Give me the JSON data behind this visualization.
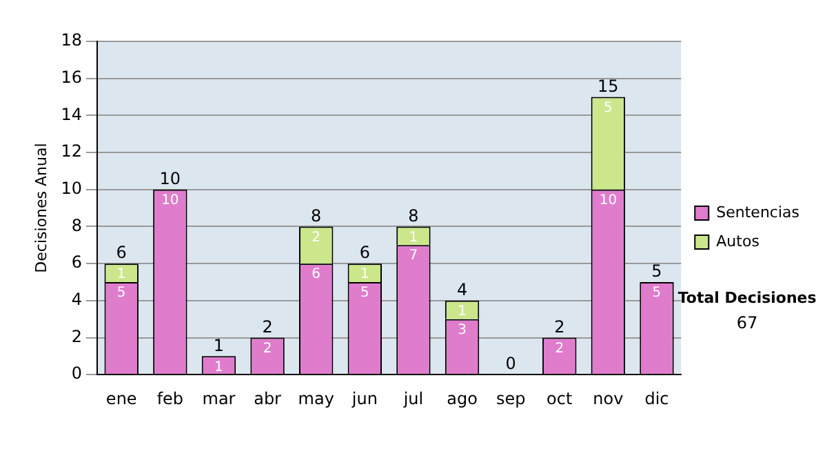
{
  "chart_data": {
    "type": "bar",
    "ylabel": "Decisiones Anual",
    "categories": [
      "ene",
      "feb",
      "mar",
      "abr",
      "may",
      "jun",
      "jul",
      "ago",
      "sep",
      "oct",
      "nov",
      "dic"
    ],
    "series": [
      {
        "name": "Sentencias",
        "color": "#e07ccc",
        "values": [
          5,
          10,
          1,
          2,
          6,
          5,
          7,
          3,
          0,
          2,
          10,
          5
        ],
        "value_labels": [
          "5",
          "10",
          "1",
          "2",
          "6",
          "5",
          "7",
          "3",
          null,
          "2",
          "10",
          "5"
        ]
      },
      {
        "name": "Autos",
        "color": "#cce68c",
        "values": [
          1,
          0,
          0,
          0,
          2,
          1,
          1,
          1,
          0,
          0,
          5,
          0
        ],
        "value_labels": [
          "1",
          null,
          null,
          null,
          "2",
          "1",
          "1",
          "1",
          null,
          null,
          "5",
          null
        ]
      }
    ],
    "stacked": true,
    "totals": [
      "6",
      "10",
      "1",
      "2",
      "8",
      "6",
      "8",
      "4",
      "0",
      "2",
      "15",
      "5"
    ],
    "ylim": [
      0,
      18
    ],
    "yticks": [
      0,
      2,
      4,
      6,
      8,
      10,
      12,
      14,
      16,
      18
    ],
    "grid": "y",
    "legend": "right",
    "annotations": [
      "Total Decisiones",
      "67"
    ]
  }
}
